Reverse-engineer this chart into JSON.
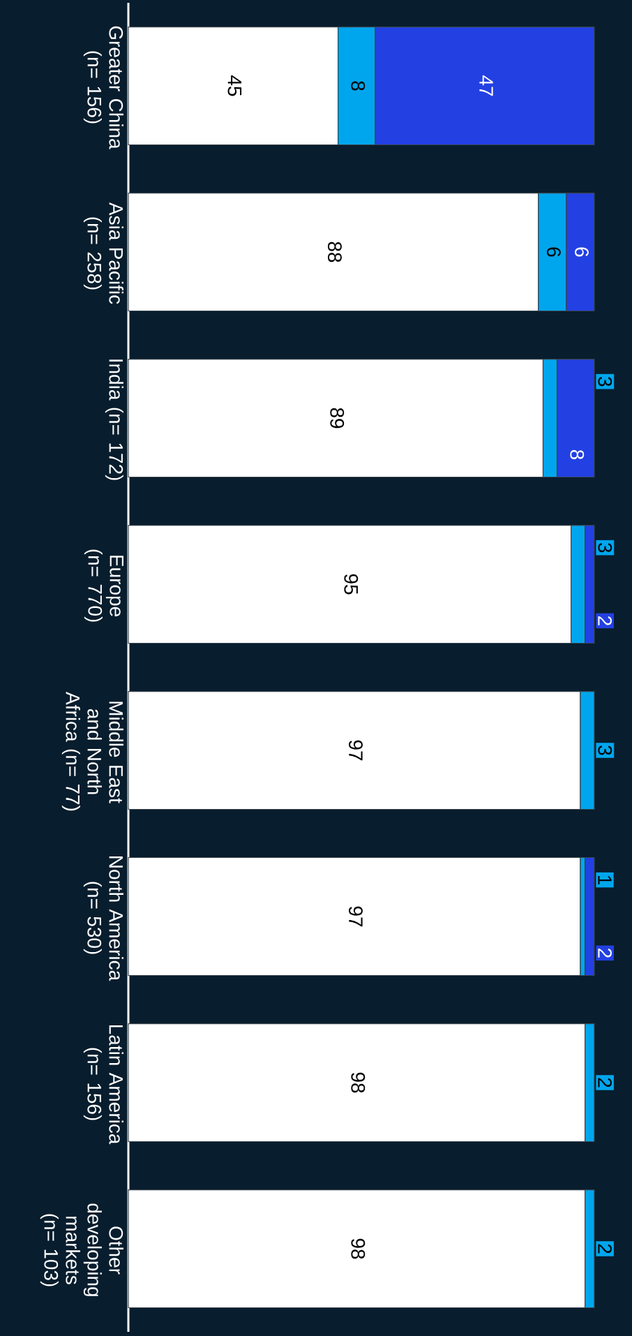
{
  "chart_data": {
    "type": "bar",
    "orientation": "horizontal",
    "stacked": true,
    "data_labels": true,
    "tick_labels": "y",
    "xlim": [
      0,
      100
    ],
    "categories": [
      "Greater China (n= 156)",
      "Asia Pacific (n= 258)",
      "India (n= 172)",
      "Europe (n= 770)",
      "Middle East and North Africa (n= 77)",
      "North America (n= 530)",
      "Latin America (n= 156)",
      "Other developing markets (n= 103)"
    ],
    "series": [
      {
        "color": "#ffffff",
        "values": [
          45,
          88,
          89,
          95,
          97,
          97,
          98,
          98
        ]
      },
      {
        "color": "#00a6ed",
        "values": [
          8,
          6,
          3,
          3,
          3,
          1,
          2,
          2
        ]
      },
      {
        "color": "#2340e3",
        "values": [
          47,
          6,
          8,
          2,
          null,
          2,
          null,
          null
        ]
      }
    ]
  }
}
